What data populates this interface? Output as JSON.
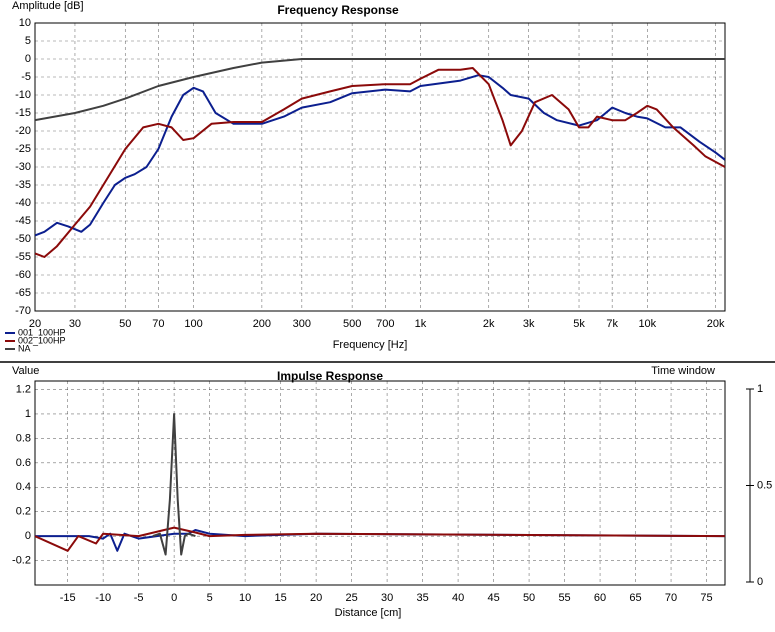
{
  "chart_data": [
    {
      "type": "line",
      "title": "Frequency Response",
      "ylabel": "Amplitude [dB]",
      "xlabel": "Frequency [Hz]",
      "xscale": "log",
      "grid": true,
      "legend": "bottom-left",
      "xlim": [
        20,
        22000
      ],
      "ylim": [
        -70,
        10
      ],
      "xticks": [
        20,
        30,
        50,
        70,
        100,
        200,
        300,
        500,
        700,
        {
          "value": 1000,
          "label": "1k"
        },
        {
          "value": 2000,
          "label": "2k"
        },
        {
          "value": 3000,
          "label": "3k"
        },
        {
          "value": 5000,
          "label": "5k"
        },
        {
          "value": 7000,
          "label": "7k"
        },
        {
          "value": 10000,
          "label": "10k"
        },
        {
          "value": 20000,
          "label": "20k"
        }
      ],
      "yticks": [
        10,
        5,
        0,
        -5,
        -10,
        -15,
        -20,
        -25,
        -30,
        -35,
        -40,
        -45,
        -50,
        -55,
        -60,
        -65,
        -70
      ],
      "series": [
        {
          "name": "001_100HP",
          "color": "#0c1f8f",
          "x": [
            20,
            22,
            25,
            28,
            32,
            35,
            40,
            45,
            50,
            55,
            62,
            70,
            80,
            90,
            100,
            110,
            125,
            150,
            200,
            250,
            300,
            400,
            500,
            700,
            900,
            1000,
            1500,
            1800,
            2000,
            2300,
            2500,
            3000,
            3500,
            4000,
            5000,
            6000,
            7000,
            8000,
            9000,
            10000,
            12000,
            14000,
            17000,
            20000,
            22000
          ],
          "values": [
            -49,
            -48,
            -45.5,
            -46.5,
            -48,
            -46,
            -40,
            -35,
            -33,
            -32,
            -30,
            -25,
            -16,
            -10,
            -8,
            -9,
            -15,
            -18,
            -18,
            -16,
            -13.5,
            -12,
            -9.5,
            -8.5,
            -9,
            -7.5,
            -6,
            -4.5,
            -5,
            -8,
            -10,
            -11,
            -15,
            -17,
            -18.5,
            -17,
            -13.5,
            -15,
            -16,
            -16.5,
            -19,
            -19,
            -23,
            -26,
            -28
          ]
        },
        {
          "name": "002_100HP",
          "color": "#8b0a0a",
          "x": [
            20,
            22,
            25,
            30,
            35,
            40,
            50,
            60,
            70,
            80,
            90,
            100,
            120,
            150,
            200,
            250,
            300,
            400,
            500,
            700,
            900,
            1000,
            1200,
            1500,
            1700,
            2000,
            2300,
            2500,
            2800,
            3200,
            3800,
            4500,
            5000,
            5500,
            6000,
            7000,
            8000,
            9000,
            10000,
            11000,
            13000,
            16000,
            18000,
            22000
          ],
          "values": [
            -54,
            -55,
            -52,
            -46,
            -41,
            -35,
            -25,
            -19,
            -18,
            -19,
            -22.5,
            -22,
            -18,
            -17.5,
            -17.5,
            -14,
            -11,
            -9,
            -7.5,
            -7,
            -7,
            -5.5,
            -3,
            -3,
            -2.5,
            -7,
            -17,
            -24,
            -20,
            -12,
            -10,
            -14,
            -19,
            -19,
            -16,
            -17,
            -17,
            -15,
            -13,
            -14,
            -19,
            -24,
            -27,
            -30
          ]
        },
        {
          "name": "NA",
          "color": "#404040",
          "x": [
            20,
            30,
            40,
            50,
            70,
            100,
            150,
            200,
            300,
            22000
          ],
          "values": [
            -17,
            -15,
            -13,
            -11,
            -7.5,
            -5,
            -2.5,
            -1,
            0,
            0
          ]
        }
      ]
    },
    {
      "type": "line",
      "title": "Impulse Response",
      "ylabel": "Value",
      "xlabel": "Distance [cm]",
      "y2label": "Time window",
      "grid": true,
      "xlim": [
        -19.6,
        77.6
      ],
      "ylim": [
        -0.4,
        1.27
      ],
      "y2lim": [
        0,
        1
      ],
      "xticks": [
        -15,
        -10,
        -5,
        0,
        5,
        10,
        15,
        20,
        25,
        30,
        35,
        40,
        45,
        50,
        55,
        60,
        65,
        70,
        75
      ],
      "yticks": [
        1.2,
        1,
        0.8,
        0.6,
        0.4,
        0.2,
        0,
        -0.2
      ],
      "y2ticks": [
        1,
        0.5,
        0
      ],
      "series": [
        {
          "color": "#0c1f8f",
          "x": [
            -19.6,
            -12,
            -10,
            -9,
            -8,
            -7,
            -5,
            0,
            2,
            3,
            5,
            10,
            20,
            77.6
          ],
          "values": [
            0,
            0,
            -0.02,
            0.02,
            -0.12,
            0.02,
            -0.02,
            0.02,
            0.02,
            0.05,
            0.02,
            0,
            0.02,
            0
          ]
        },
        {
          "color": "#8b0a0a",
          "x": [
            -19.6,
            -15,
            -13.5,
            -11,
            -10,
            -5,
            0,
            3,
            5,
            10,
            20,
            77.6
          ],
          "values": [
            0,
            -0.12,
            0,
            -0.06,
            0.02,
            0,
            0.07,
            0.03,
            0,
            0.01,
            0.02,
            0
          ]
        },
        {
          "color": "#404040",
          "x": [
            -3,
            -2,
            -1.2,
            -0.6,
            0,
            0.5,
            1,
            1.5,
            2,
            3
          ],
          "values": [
            0,
            0.02,
            -0.15,
            0.3,
            1,
            0.3,
            -0.15,
            0,
            0.02,
            0
          ]
        }
      ]
    }
  ]
}
